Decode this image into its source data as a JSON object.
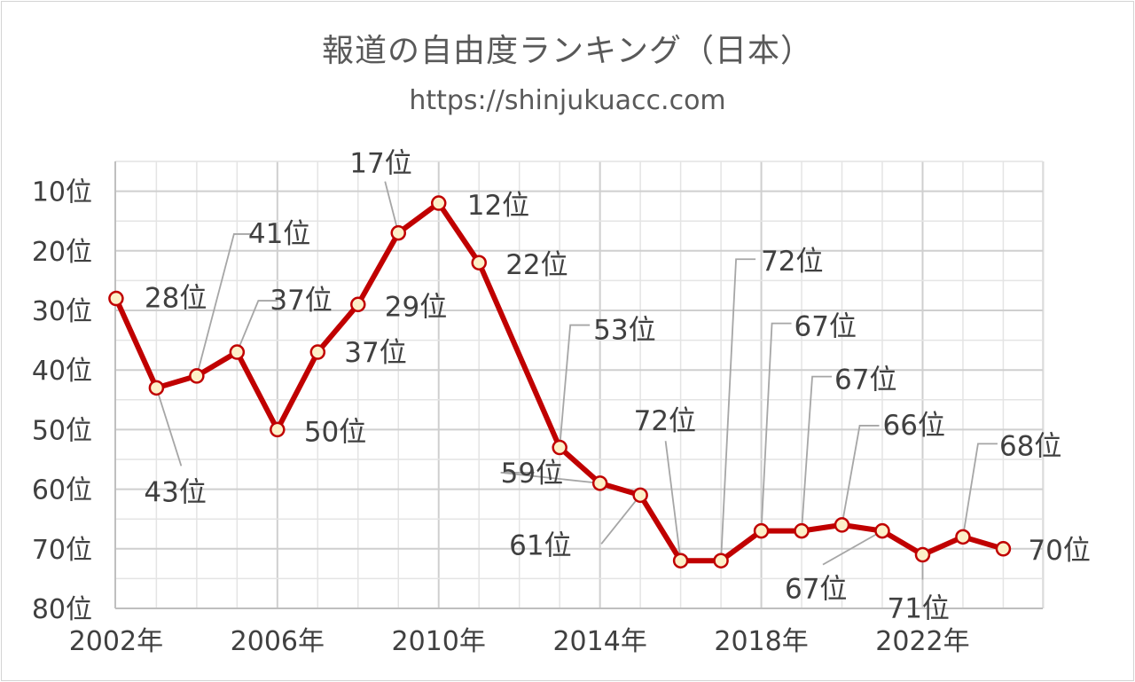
{
  "chart_data": {
    "type": "line",
    "title": "報道の自由度ランキング（日本）",
    "subtitle": "https://shinjukuacc.com",
    "y_reversed": true,
    "ylim": [
      5,
      80
    ],
    "y_ticks": [
      10,
      20,
      30,
      40,
      50,
      60,
      70,
      80
    ],
    "y_tick_suffix": "位",
    "xlim": [
      2002,
      2025
    ],
    "x_ticks": [
      2002,
      2006,
      2010,
      2014,
      2018,
      2022
    ],
    "x_tick_suffix": "年",
    "line_color": "#c00000",
    "marker_fill": "#fdf0c8",
    "grid": true,
    "series": [
      {
        "points": [
          {
            "x": 2002,
            "y": 28,
            "label": "28位"
          },
          {
            "x": 2003,
            "y": 43,
            "label": "43位"
          },
          {
            "x": 2004,
            "y": 41,
            "label": "41位"
          },
          {
            "x": 2005,
            "y": 37,
            "label": "37位"
          },
          {
            "x": 2006,
            "y": 50,
            "label": "50位"
          },
          {
            "x": 2007,
            "y": 37,
            "label": "37位"
          },
          {
            "x": 2008,
            "y": 29,
            "label": "29位"
          },
          {
            "x": 2009,
            "y": 17,
            "label": "17位"
          },
          {
            "x": 2010,
            "y": 12,
            "label": "12位"
          },
          {
            "x": 2011,
            "y": 22,
            "label": "22位"
          },
          {
            "x": 2013,
            "y": 53,
            "label": "53位"
          },
          {
            "x": 2014,
            "y": 59,
            "label": "59位"
          },
          {
            "x": 2015,
            "y": 61,
            "label": "61位"
          },
          {
            "x": 2016,
            "y": 72,
            "label": "72位"
          },
          {
            "x": 2017,
            "y": 72,
            "label": "72位"
          },
          {
            "x": 2018,
            "y": 67,
            "label": "67位"
          },
          {
            "x": 2019,
            "y": 67,
            "label": "67位"
          },
          {
            "x": 2020,
            "y": 66,
            "label": "66位"
          },
          {
            "x": 2021,
            "y": 67,
            "label": "67位"
          },
          {
            "x": 2022,
            "y": 71,
            "label": "71位"
          },
          {
            "x": 2023,
            "y": 68,
            "label": "68位"
          },
          {
            "x": 2024,
            "y": 70,
            "label": "70位"
          }
        ]
      }
    ]
  }
}
